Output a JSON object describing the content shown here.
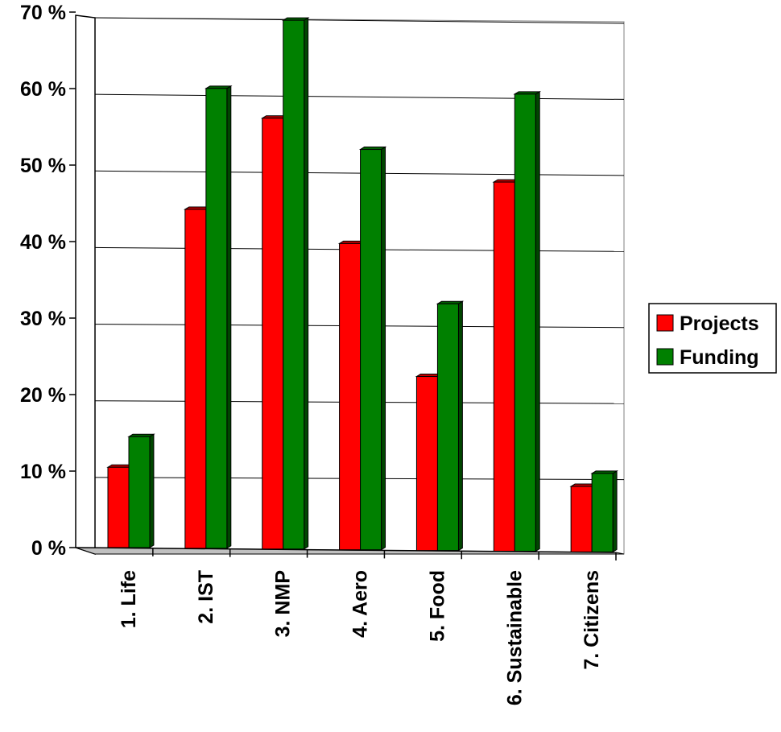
{
  "chart_data": {
    "type": "bar",
    "categories": [
      "1. Life",
      "2. IST",
      "3. NMP",
      "4. Aero",
      "5. Food",
      "6. Sustainable",
      "7. Citizens"
    ],
    "series": [
      {
        "name": "Projects",
        "values": [
          10.5,
          44.3,
          56.3,
          40.0,
          22.7,
          48.2,
          8.5
        ],
        "color": "#ff0000"
      },
      {
        "name": "Funding",
        "values": [
          14.5,
          60.1,
          69.1,
          52.3,
          32.2,
          59.7,
          10.2
        ],
        "color": "#008000"
      }
    ],
    "yticks": [
      "0 %",
      "10 %",
      "20 %",
      "30 %",
      "40 %",
      "50 %",
      "60 %",
      "70 %"
    ],
    "ylim": [
      0,
      70
    ],
    "grid": true,
    "legend_position": "right"
  }
}
